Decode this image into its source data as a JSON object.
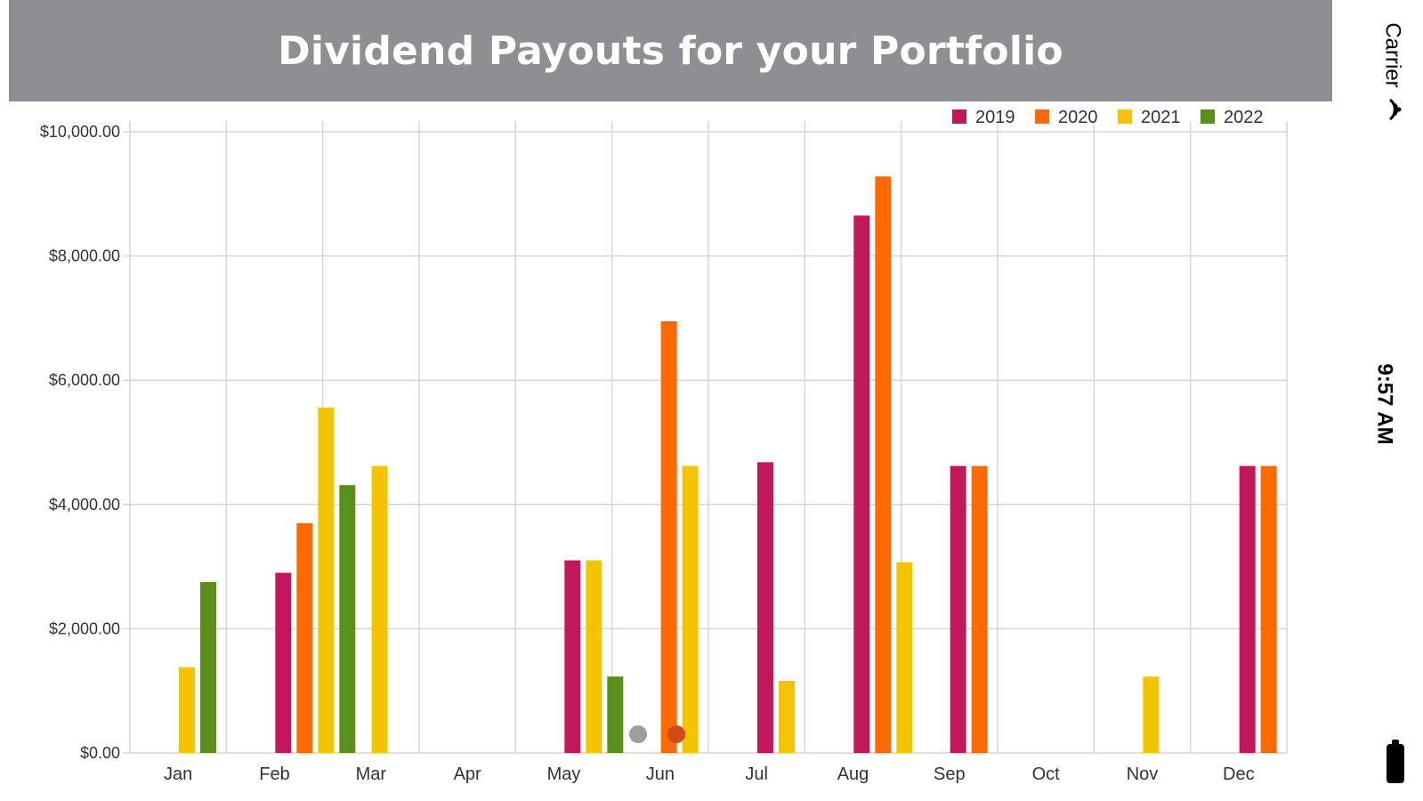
{
  "title": "Dividend Payouts for your Portfolio",
  "status_bar": {
    "carrier": "Carrier",
    "time": "9:57 AM"
  },
  "icons": {
    "wifi": "wifi-icon",
    "battery": "battery-icon",
    "scroll_dots": [
      "dot-gray",
      "dot-red"
    ]
  },
  "chart_data": {
    "type": "bar",
    "title": "Dividend Payouts for your Portfolio",
    "xlabel": "",
    "ylabel": "",
    "ylim": [
      0,
      10000
    ],
    "y_ticks": [
      0,
      2000,
      4000,
      6000,
      8000,
      10000
    ],
    "y_tick_labels": [
      "$0.00",
      "$2,000.00",
      "$4,000.00",
      "$6,000.00",
      "$8,000.00",
      "$10,000.00"
    ],
    "categories": [
      "Jan",
      "Feb",
      "Mar",
      "Apr",
      "May",
      "Jun",
      "Jul",
      "Aug",
      "Sep",
      "Oct",
      "Nov",
      "Dec"
    ],
    "grid": true,
    "legend_position": "top-right",
    "series": [
      {
        "name": "2019",
        "color": "#c2185b",
        "values": [
          0,
          2900,
          0,
          0,
          3100,
          0,
          4680,
          8650,
          4620,
          0,
          0,
          4620
        ]
      },
      {
        "name": "2020",
        "color": "#ff6a00",
        "values": [
          0,
          3700,
          0,
          0,
          0,
          6950,
          0,
          9280,
          4620,
          0,
          0,
          4620
        ]
      },
      {
        "name": "2021",
        "color": "#f5c400",
        "values": [
          1380,
          5560,
          4620,
          0,
          3100,
          4620,
          1160,
          3070,
          0,
          0,
          1230,
          0
        ]
      },
      {
        "name": "2022",
        "color": "#5a8f1a",
        "values": [
          2750,
          4310,
          0,
          0,
          1230,
          0,
          0,
          0,
          0,
          0,
          0,
          0
        ]
      }
    ]
  }
}
